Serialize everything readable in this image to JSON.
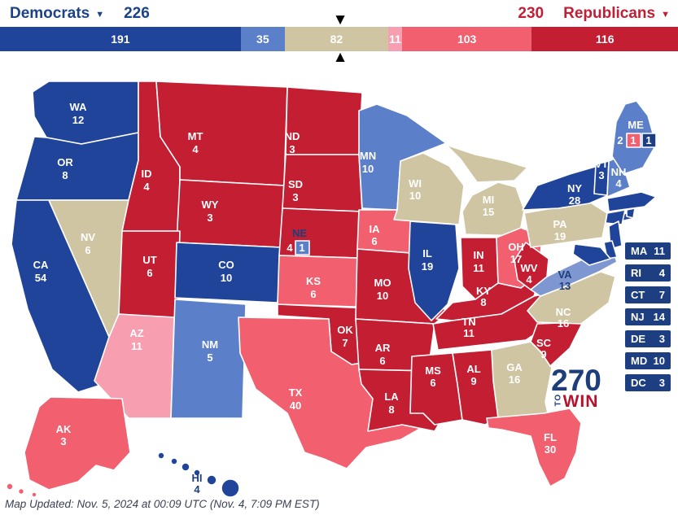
{
  "header": {
    "democrats": {
      "label": "Democrats",
      "total": "226"
    },
    "republicans": {
      "label": "Republicans",
      "total": "230"
    }
  },
  "icons": {
    "dropdown_caret": "▼",
    "marker_down": "▼",
    "marker_up": "▲"
  },
  "bar": {
    "total": 538,
    "threshold": 270,
    "segments": [
      {
        "name": "safe-dem",
        "value": 191,
        "color": "#21449b"
      },
      {
        "name": "likely-dem",
        "value": 35,
        "color": "#5c7fc9"
      },
      {
        "name": "tossup",
        "value": 82,
        "color": "#cfc5a2"
      },
      {
        "name": "lean-rep",
        "value": 11,
        "color": "#f79fb1"
      },
      {
        "name": "likely-rep",
        "value": 103,
        "color": "#f25f6e"
      },
      {
        "name": "safe-rep",
        "value": 116,
        "color": "#c41e33"
      }
    ]
  },
  "map": {
    "colors": {
      "safe_dem": "#21449b",
      "likely_dem": "#5c7fc9",
      "lean_dem": "#7e97d1",
      "tossup": "#cfc5a2",
      "lean_rep": "#f79fb1",
      "likely_rep": "#f25f6e",
      "safe_rep": "#c41e33",
      "east_box": "#1d3e80",
      "navy_text": "#1d3e7a"
    },
    "states": [
      {
        "abbr": "WA",
        "ev": "12",
        "category": "safe-dem",
        "color": "#21449b"
      },
      {
        "abbr": "OR",
        "ev": "8",
        "category": "safe-dem",
        "color": "#21449b"
      },
      {
        "abbr": "CA",
        "ev": "54",
        "category": "safe-dem",
        "color": "#21449b"
      },
      {
        "abbr": "NV",
        "ev": "6",
        "category": "tossup",
        "color": "#cfc5a2"
      },
      {
        "abbr": "ID",
        "ev": "4",
        "category": "safe-rep",
        "color": "#c41e33"
      },
      {
        "abbr": "MT",
        "ev": "4",
        "category": "safe-rep",
        "color": "#c41e33"
      },
      {
        "abbr": "WY",
        "ev": "3",
        "category": "safe-rep",
        "color": "#c41e33"
      },
      {
        "abbr": "UT",
        "ev": "6",
        "category": "safe-rep",
        "color": "#c41e33"
      },
      {
        "abbr": "AZ",
        "ev": "11",
        "category": "lean-rep",
        "color": "#f79fb1"
      },
      {
        "abbr": "NM",
        "ev": "5",
        "category": "likely-dem",
        "color": "#5c7fc9"
      },
      {
        "abbr": "CO",
        "ev": "10",
        "category": "safe-dem",
        "color": "#21449b"
      },
      {
        "abbr": "ND",
        "ev": "3",
        "category": "safe-rep",
        "color": "#c41e33"
      },
      {
        "abbr": "SD",
        "ev": "3",
        "category": "safe-rep",
        "color": "#c41e33"
      },
      {
        "abbr": "NE",
        "ev": "4",
        "category": "safe-rep",
        "color": "#c41e33",
        "abbr_color": "#1d3e7a"
      },
      {
        "abbr": "KS",
        "ev": "6",
        "category": "likely-rep",
        "color": "#f25f6e"
      },
      {
        "abbr": "OK",
        "ev": "7",
        "category": "safe-rep",
        "color": "#c41e33"
      },
      {
        "abbr": "TX",
        "ev": "40",
        "category": "likely-rep",
        "color": "#f25f6e"
      },
      {
        "abbr": "MN",
        "ev": "10",
        "category": "likely-dem",
        "color": "#5c7fc9"
      },
      {
        "abbr": "IA",
        "ev": "6",
        "category": "likely-rep",
        "color": "#f25f6e"
      },
      {
        "abbr": "MO",
        "ev": "10",
        "category": "safe-rep",
        "color": "#c41e33"
      },
      {
        "abbr": "AR",
        "ev": "6",
        "category": "safe-rep",
        "color": "#c41e33"
      },
      {
        "abbr": "LA",
        "ev": "8",
        "category": "safe-rep",
        "color": "#c41e33"
      },
      {
        "abbr": "WI",
        "ev": "10",
        "category": "tossup",
        "color": "#cfc5a2"
      },
      {
        "abbr": "IL",
        "ev": "19",
        "category": "safe-dem",
        "color": "#21449b"
      },
      {
        "abbr": "MI",
        "ev": "15",
        "category": "tossup",
        "color": "#cfc5a2"
      },
      {
        "abbr": "IN",
        "ev": "11",
        "category": "safe-rep",
        "color": "#c41e33"
      },
      {
        "abbr": "OH",
        "ev": "17",
        "category": "likely-rep",
        "color": "#f25f6e"
      },
      {
        "abbr": "KY",
        "ev": "8",
        "category": "safe-rep",
        "color": "#c41e33"
      },
      {
        "abbr": "TN",
        "ev": "11",
        "category": "safe-rep",
        "color": "#c41e33"
      },
      {
        "abbr": "MS",
        "ev": "6",
        "category": "safe-rep",
        "color": "#c41e33"
      },
      {
        "abbr": "AL",
        "ev": "9",
        "category": "safe-rep",
        "color": "#c41e33"
      },
      {
        "abbr": "GA",
        "ev": "16",
        "category": "tossup",
        "color": "#cfc5a2"
      },
      {
        "abbr": "FL",
        "ev": "30",
        "category": "likely-rep",
        "color": "#f25f6e"
      },
      {
        "abbr": "SC",
        "ev": "9",
        "category": "safe-rep",
        "color": "#c41e33"
      },
      {
        "abbr": "NC",
        "ev": "16",
        "category": "tossup",
        "color": "#cfc5a2"
      },
      {
        "abbr": "VA",
        "ev": "13",
        "category": "lean-dem",
        "color": "#7e97d1",
        "text_color": "#1d3e7a"
      },
      {
        "abbr": "WV",
        "ev": "4",
        "category": "safe-rep",
        "color": "#c41e33"
      },
      {
        "abbr": "PA",
        "ev": "19",
        "category": "tossup",
        "color": "#cfc5a2"
      },
      {
        "abbr": "NY",
        "ev": "28",
        "category": "safe-dem",
        "color": "#21449b"
      },
      {
        "abbr": "VT",
        "ev": "3",
        "category": "safe-dem",
        "color": "#21449b"
      },
      {
        "abbr": "NH",
        "ev": "4",
        "category": "likely-dem",
        "color": "#5c7fc9"
      },
      {
        "abbr": "ME",
        "ev": "2",
        "category": "likely-dem",
        "color": "#5c7fc9"
      },
      {
        "abbr": "AK",
        "ev": "3",
        "category": "likely-rep",
        "color": "#f25f6e"
      },
      {
        "abbr": "HI",
        "ev": "4",
        "category": "safe-dem",
        "color": "#21449b",
        "text_color": "#1d3e7a"
      }
    ],
    "maine": {
      "cd2_ev": "1",
      "cd2_color": "#f25f6e",
      "cd1_ev": "1",
      "cd1_color": "#1d3e80"
    },
    "nebraska": {
      "cd_ev": "1",
      "cd_color": "#5c7fc9"
    }
  },
  "east_boxes": [
    {
      "abbr": "MA",
      "ev": "11"
    },
    {
      "abbr": "RI",
      "ev": "4"
    },
    {
      "abbr": "CT",
      "ev": "7"
    },
    {
      "abbr": "NJ",
      "ev": "14"
    },
    {
      "abbr": "DE",
      "ev": "3"
    },
    {
      "abbr": "MD",
      "ev": "10"
    },
    {
      "abbr": "DC",
      "ev": "3"
    }
  ],
  "logo": {
    "line1": "270",
    "to": "TO",
    "win": "WIN",
    "color_270": "#1d3e7a",
    "color_win": "#b5122e"
  },
  "footer": {
    "text": "Map Updated: Nov. 5, 2024 at 00:09 UTC (Nov. 4, 7:09 PM EST)"
  }
}
